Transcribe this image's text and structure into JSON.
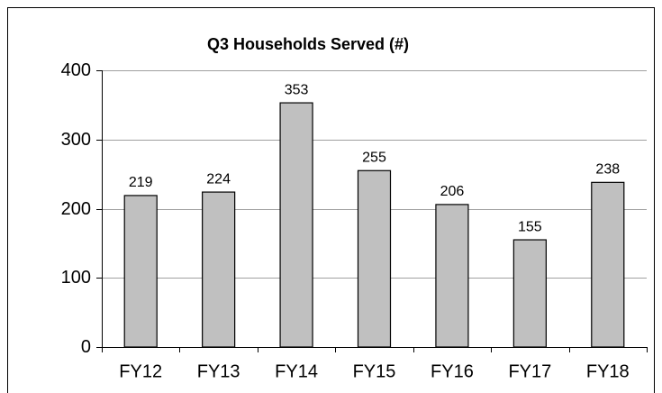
{
  "chart_data": {
    "type": "bar",
    "title": "Q3 Households Served (#)",
    "categories": [
      "FY12",
      "FY13",
      "FY14",
      "FY15",
      "FY16",
      "FY17",
      "FY18"
    ],
    "values": [
      219,
      224,
      353,
      255,
      206,
      155,
      238
    ],
    "color": "#c0c0c0",
    "ylim": [
      0,
      400
    ],
    "yticks": [
      0,
      100,
      200,
      300,
      400
    ],
    "grid": true
  }
}
